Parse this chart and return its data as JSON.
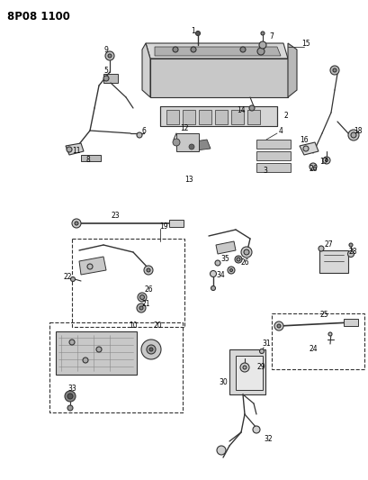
{
  "title": "8P08 1100",
  "bg_color": "#ffffff",
  "lc": "#333333",
  "tc": "#000000",
  "figw": 4.1,
  "figh": 5.33,
  "dpi": 100
}
